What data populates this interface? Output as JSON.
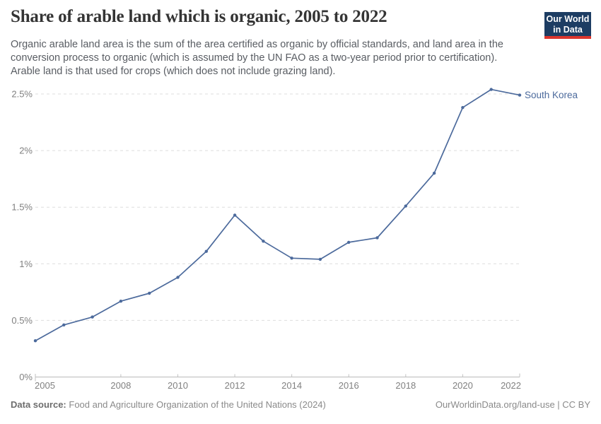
{
  "header": {
    "title": "Share of arable land which is organic, 2005 to 2022",
    "subtitle_lines": [
      "Organic arable land area is the sum of the area certified as organic by official standards, and land area in the",
      "conversion process to organic (which is assumed by the UN FAO as a two-year period prior to certification).",
      "Arable land is that used for crops (which does not include grazing land)."
    ],
    "logo": {
      "line1": "Our World",
      "line2": "in Data",
      "bg_color": "#1d3d63",
      "accent_color": "#dc352d"
    }
  },
  "chart_data": {
    "type": "line",
    "title": "Share of arable land which is organic, 2005 to 2022",
    "xlabel": "",
    "ylabel": "",
    "xlim": [
      2005,
      2022
    ],
    "ylim": [
      0,
      2.5
    ],
    "xticks": [
      2005,
      2008,
      2010,
      2012,
      2014,
      2016,
      2018,
      2020,
      2022
    ],
    "yticks": [
      0,
      0.5,
      1,
      1.5,
      2,
      2.5
    ],
    "ytick_labels": [
      "0%",
      "0.5%",
      "1%",
      "1.5%",
      "2%",
      "2.5%"
    ],
    "grid": "horizontal-dashed",
    "legend_position": "end-of-line-label",
    "series": [
      {
        "name": "South Korea",
        "color": "#4c6a9c",
        "x": [
          2005,
          2006,
          2007,
          2008,
          2009,
          2010,
          2011,
          2012,
          2013,
          2014,
          2015,
          2016,
          2017,
          2018,
          2019,
          2020,
          2021,
          2022
        ],
        "values": [
          0.32,
          0.46,
          0.53,
          0.67,
          0.74,
          0.88,
          1.11,
          1.43,
          1.2,
          1.05,
          1.04,
          1.19,
          1.23,
          1.51,
          1.8,
          2.38,
          2.54,
          2.49
        ]
      }
    ],
    "axis_colors": {
      "grid": "#dedede",
      "axis_line": "#b9b9b9",
      "tick": "#c2c2c2",
      "tick_label": "#818181"
    }
  },
  "footer": {
    "source_label": "Data source:",
    "source_text": "Food and Agriculture Organization of the United Nations (2024)",
    "credit": "OurWorldinData.org/land-use | CC BY"
  }
}
